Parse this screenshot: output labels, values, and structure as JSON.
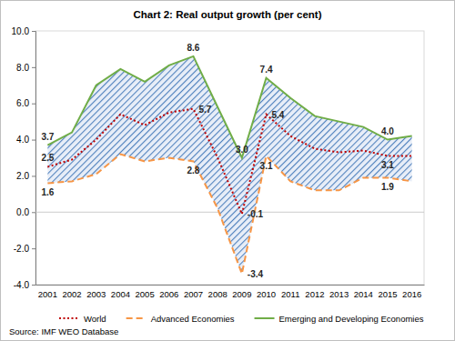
{
  "chart_data": {
    "type": "line",
    "title": "Chart 2: Real output growth (per cent)",
    "source": "Source: IMF WEO Database",
    "categories": [
      "2001",
      "2002",
      "2003",
      "2004",
      "2005",
      "2006",
      "2007",
      "2008",
      "2009",
      "2010",
      "2011",
      "2012",
      "2013",
      "2014",
      "2015",
      "2016"
    ],
    "ylim": [
      -4,
      10
    ],
    "yticks": [
      {
        "value": -4,
        "label": "-4.0"
      },
      {
        "value": -2,
        "label": "-2.0"
      },
      {
        "value": 0,
        "label": "0.0"
      },
      {
        "value": 2,
        "label": "2.0"
      },
      {
        "value": 4,
        "label": "4.0"
      },
      {
        "value": 6,
        "label": "6.0"
      },
      {
        "value": 8,
        "label": "8.0"
      },
      {
        "value": 10,
        "label": "10.0"
      }
    ],
    "grid": false,
    "legend": "bottom",
    "series": [
      {
        "name": "World",
        "color": "#c00000",
        "line_style": "dotted",
        "values": [
          2.5,
          2.9,
          4.0,
          5.4,
          4.8,
          5.5,
          5.7,
          3.0,
          -0.1,
          5.4,
          4.2,
          3.5,
          3.3,
          3.4,
          3.1,
          3.1
        ],
        "value_labels": [
          "2.5",
          null,
          null,
          null,
          null,
          null,
          "5.7",
          null,
          "-0.1",
          "5.4",
          null,
          null,
          null,
          null,
          "3.1",
          null
        ]
      },
      {
        "name": "Advanced Economies",
        "color": "#f79646",
        "line_style": "dashed",
        "values": [
          1.6,
          1.7,
          2.1,
          3.2,
          2.8,
          3.0,
          2.8,
          0.2,
          -3.4,
          3.1,
          1.7,
          1.2,
          1.2,
          1.9,
          1.9,
          1.7
        ],
        "value_labels": [
          "1.6",
          null,
          null,
          null,
          null,
          null,
          "2.8",
          null,
          "-3.4",
          "3.1",
          null,
          null,
          null,
          null,
          "1.9",
          null
        ]
      },
      {
        "name": "Emerging and Developing Economies",
        "color": "#70ad47",
        "line_style": "solid",
        "values": [
          3.7,
          4.4,
          7.0,
          7.9,
          7.2,
          8.1,
          8.6,
          5.8,
          3.0,
          7.4,
          6.3,
          5.3,
          5.0,
          4.7,
          4.0,
          4.2
        ],
        "value_labels": [
          "3.7",
          null,
          null,
          null,
          null,
          null,
          "8.6",
          null,
          "3.0",
          "7.4",
          null,
          null,
          null,
          null,
          "4.0",
          null
        ]
      }
    ]
  }
}
